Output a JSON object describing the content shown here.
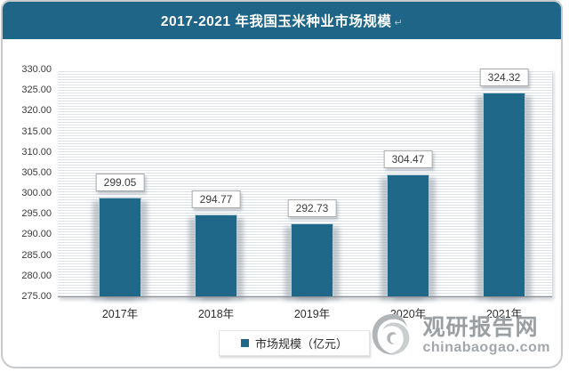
{
  "header": {
    "title": "2017-2021 年我国玉米种业市场规模",
    "return_mark": "↵",
    "bg_color": "#1e6588",
    "text_color": "#ffffff"
  },
  "chart_data": {
    "type": "bar",
    "title": "2017-2021 年我国玉米种业市场规模",
    "categories": [
      "2017年",
      "2018年",
      "2019年",
      "2020年",
      "2021年"
    ],
    "values": [
      299.05,
      294.77,
      292.73,
      304.47,
      324.32
    ],
    "value_labels": [
      "299.05",
      "294.77",
      "292.73",
      "304.47",
      "324.32"
    ],
    "xlabel": "",
    "ylabel": "",
    "ylim": [
      275,
      330
    ],
    "ytick_step": 5,
    "ytick_labels": [
      "330.00",
      "325.00",
      "320.00",
      "315.00",
      "310.00",
      "305.00",
      "300.00",
      "295.00",
      "290.00",
      "285.00",
      "280.00",
      "275.00"
    ],
    "grid": "horizontal-stripes",
    "bar_color": "#1f6889",
    "legend": {
      "label": "市场规模（亿元）",
      "position": "bottom",
      "marker_color": "#1f6889"
    }
  },
  "watermark": {
    "site_name": "观研报告网",
    "site_url": "chinabaogao.com",
    "logo": "swirl-logo",
    "color": "#9b9fa2"
  }
}
